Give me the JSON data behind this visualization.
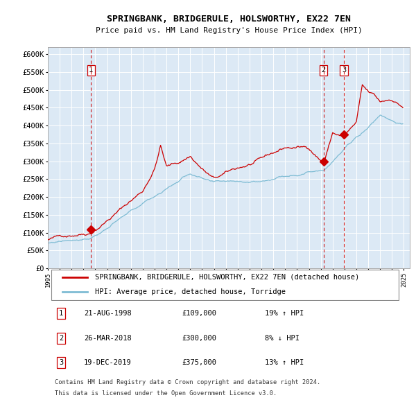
{
  "title": "SPRINGBANK, BRIDGERULE, HOLSWORTHY, EX22 7EN",
  "subtitle": "Price paid vs. HM Land Registry's House Price Index (HPI)",
  "ylabel_ticks": [
    "£0",
    "£50K",
    "£100K",
    "£150K",
    "£200K",
    "£250K",
    "£300K",
    "£350K",
    "£400K",
    "£450K",
    "£500K",
    "£550K",
    "£600K"
  ],
  "ytick_values": [
    0,
    50000,
    100000,
    150000,
    200000,
    250000,
    300000,
    350000,
    400000,
    450000,
    500000,
    550000,
    600000
  ],
  "ylim": [
    0,
    620000
  ],
  "xlim_start": 1995.0,
  "xlim_end": 2025.5,
  "hpi_line_color": "#7fbcd4",
  "price_line_color": "#cc0000",
  "background_color": "#dce9f5",
  "grid_color": "#ffffff",
  "sale_marker_color": "#cc0000",
  "vline_color": "#cc0000",
  "transactions": [
    {
      "id": 1,
      "date_str": "21-AUG-1998",
      "date_x": 1998.64,
      "price": 109000,
      "pct": "19%",
      "dir": "↑",
      "label": "£109,000"
    },
    {
      "id": 2,
      "date_str": "26-MAR-2018",
      "date_x": 2018.23,
      "price": 300000,
      "pct": "8%",
      "dir": "↓",
      "label": "£300,000"
    },
    {
      "id": 3,
      "date_str": "19-DEC-2019",
      "date_x": 2019.96,
      "price": 375000,
      "pct": "13%",
      "dir": "↑",
      "label": "£375,000"
    }
  ],
  "legend_line1": "SPRINGBANK, BRIDGERULE, HOLSWORTHY, EX22 7EN (detached house)",
  "legend_line2": "HPI: Average price, detached house, Torridge",
  "footer1": "Contains HM Land Registry data © Crown copyright and database right 2024.",
  "footer2": "This data is licensed under the Open Government Licence v3.0.",
  "table_rows": [
    {
      "id": 1,
      "date": "21-AUG-1998",
      "price": "£109,000",
      "pct": "19% ↑ HPI"
    },
    {
      "id": 2,
      "date": "26-MAR-2018",
      "price": "£300,000",
      "pct": "8% ↓ HPI"
    },
    {
      "id": 3,
      "date": "19-DEC-2019",
      "price": "£375,000",
      "pct": "13% ↑ HPI"
    }
  ]
}
